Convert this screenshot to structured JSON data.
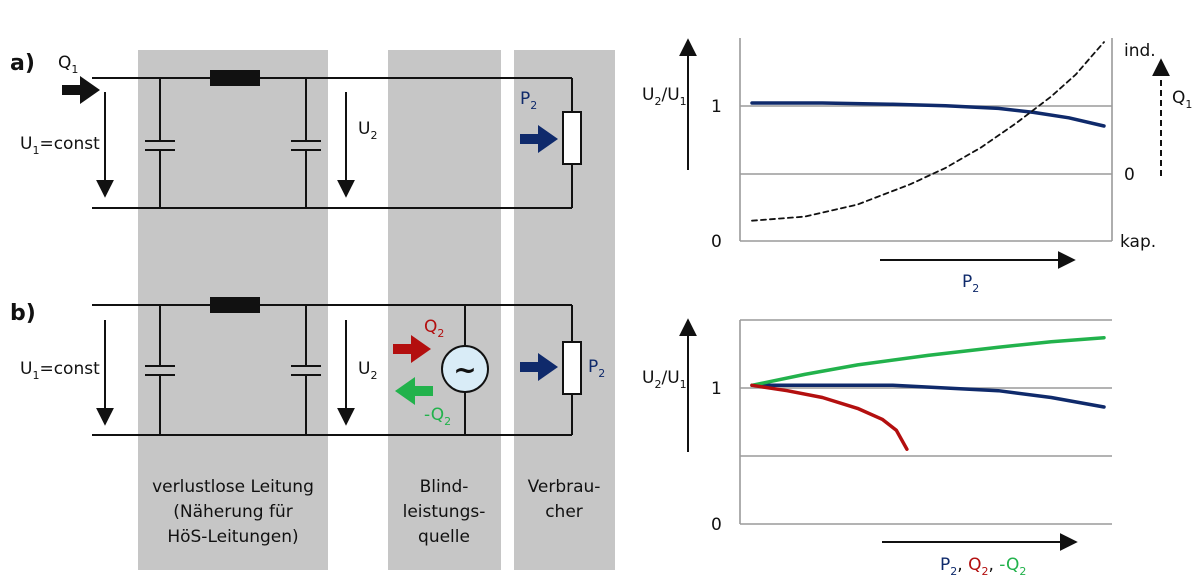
{
  "panels": {
    "a_label": "a)",
    "b_label": "b)"
  },
  "circuit": {
    "q1": {
      "main": "Q",
      "sub": "1"
    },
    "u1": {
      "main": "U",
      "sub": "1",
      "rest": "=const"
    },
    "u2": {
      "main": "U",
      "sub": "2"
    },
    "p2": {
      "main": "P",
      "sub": "2"
    },
    "q2": {
      "main": "Q",
      "sub": "2"
    },
    "neg_q2": {
      "main": "-Q",
      "sub": "2"
    },
    "source_symbol": "~"
  },
  "captions": {
    "line": [
      "verlustlose Leitung",
      "(Näherung für",
      "HöS-Leitungen)"
    ],
    "source": [
      "Blind-",
      "leistungs-",
      "quelle"
    ],
    "consumer": [
      "Verbrau-",
      "cher"
    ]
  },
  "chart_data": [
    {
      "type": "line",
      "panel": "a",
      "ylabel": {
        "main": "U",
        "sub1": "2",
        "slash": "/",
        "main2": "U",
        "sub2": "1"
      },
      "y_ticks": [
        "1",
        "0"
      ],
      "y2_label": {
        "main": "Q",
        "sub": "1"
      },
      "y2_ticks": [
        "ind.",
        "0",
        "kap."
      ],
      "xlabel": {
        "main": "P",
        "sub": "2"
      },
      "ylim": [
        0,
        1.5
      ],
      "y2lim": [
        -1,
        1.5
      ],
      "grid": true,
      "series": [
        {
          "color": "#0f2a6b",
          "style": "solid",
          "axis": "left",
          "x": [
            0,
            0.2,
            0.4,
            0.55,
            0.7,
            0.8,
            0.9,
            1.0
          ],
          "y": [
            1.02,
            1.02,
            1.01,
            1.0,
            0.98,
            0.95,
            0.91,
            0.85
          ]
        },
        {
          "color": "#111111",
          "style": "dashed",
          "axis": "right",
          "x": [
            0,
            0.15,
            0.3,
            0.45,
            0.55,
            0.65,
            0.75,
            0.85,
            0.92,
            0.97,
            1.0
          ],
          "y": [
            -0.75,
            -0.7,
            -0.55,
            -0.3,
            -0.1,
            0.15,
            0.45,
            0.78,
            1.05,
            1.3,
            1.45
          ]
        }
      ]
    },
    {
      "type": "line",
      "panel": "b",
      "ylabel": {
        "main": "U",
        "sub1": "2",
        "slash": "/",
        "main2": "U",
        "sub2": "1"
      },
      "y_ticks": [
        "1",
        "0"
      ],
      "xlabel_parts": [
        {
          "main": "P",
          "sub": "2",
          "color": "#0f2a6b"
        },
        {
          "main": "Q",
          "sub": "2",
          "color": "#b30f0f"
        },
        {
          "main": "-Q",
          "sub": "2",
          "color": "#22b24c"
        }
      ],
      "ylim": [
        0,
        1.5
      ],
      "grid": true,
      "series": [
        {
          "color": "#0f2a6b",
          "x": [
            0,
            0.2,
            0.4,
            0.55,
            0.7,
            0.85,
            1.0
          ],
          "y": [
            1.02,
            1.02,
            1.02,
            1.0,
            0.98,
            0.93,
            0.86
          ]
        },
        {
          "color": "#22b24c",
          "x": [
            0,
            0.15,
            0.3,
            0.5,
            0.7,
            0.85,
            1.0
          ],
          "y": [
            1.02,
            1.1,
            1.17,
            1.24,
            1.3,
            1.34,
            1.37
          ]
        },
        {
          "color": "#b30f0f",
          "x": [
            0,
            0.1,
            0.2,
            0.3,
            0.37,
            0.41,
            0.44
          ],
          "y": [
            1.02,
            0.98,
            0.93,
            0.85,
            0.77,
            0.69,
            0.55
          ]
        }
      ]
    }
  ],
  "colors": {
    "band": "#c6c6c6",
    "p2_arrow": "#0f2a6b",
    "q2_arrow": "#b30f0f",
    "neg_q2_arrow": "#22b24c",
    "q1_arrow": "#111111",
    "source_fill": "#d9ecf7"
  }
}
